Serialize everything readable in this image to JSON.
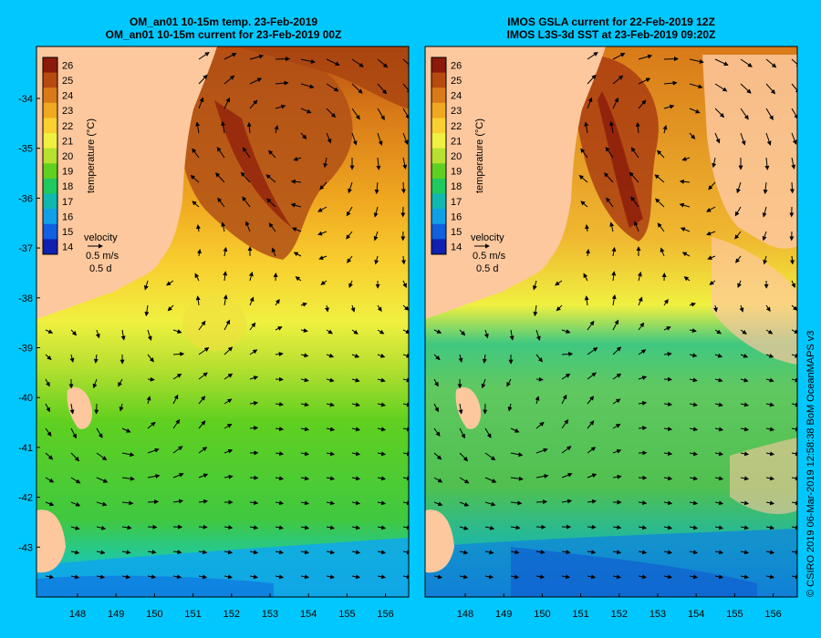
{
  "panels": [
    {
      "id": "left",
      "title_line1": "OM_an01 10-15m temp. 23-Feb-2019",
      "title_line2": "OM_an01 10-15m current for 23-Feb-2019 00Z",
      "kind": "model"
    },
    {
      "id": "right",
      "title_line1": "IMOS GSLA current for 22-Feb-2019 12Z",
      "title_line2": "IMOS L3S-3d SST at 23-Feb-2019 09:20Z",
      "kind": "observed"
    }
  ],
  "colorbar": {
    "label": "temperature (°C)",
    "ticks": [
      "26",
      "25",
      "24",
      "23",
      "22",
      "21",
      "20",
      "19",
      "18",
      "17",
      "16",
      "15",
      "14"
    ],
    "colors": [
      "#8b1a0a",
      "#b84a10",
      "#d87a18",
      "#f0a820",
      "#f8d030",
      "#f0f040",
      "#b8e030",
      "#60d020",
      "#20c860",
      "#10b8b0",
      "#10a0e8",
      "#1060e0",
      "#1020b0"
    ]
  },
  "velocity_legend": {
    "title": "velocity",
    "speed": "0.5 m/s",
    "duration": "0.5 d"
  },
  "axes": {
    "lat_labels": [
      "-34",
      "-35",
      "-36",
      "-37",
      "-38",
      "-39",
      "-40",
      "-41",
      "-42",
      "-43"
    ],
    "lon_labels": [
      "148",
      "149",
      "150",
      "151",
      "152",
      "153",
      "154",
      "155",
      "156"
    ]
  },
  "colors": {
    "background": "#00c8ff",
    "land": "#fdc89e",
    "no_data": "#fdc89e"
  },
  "credit": "© CSIRO 2019   06-Mar-2019 12:58:38 BoM OceanMAPS v3"
}
